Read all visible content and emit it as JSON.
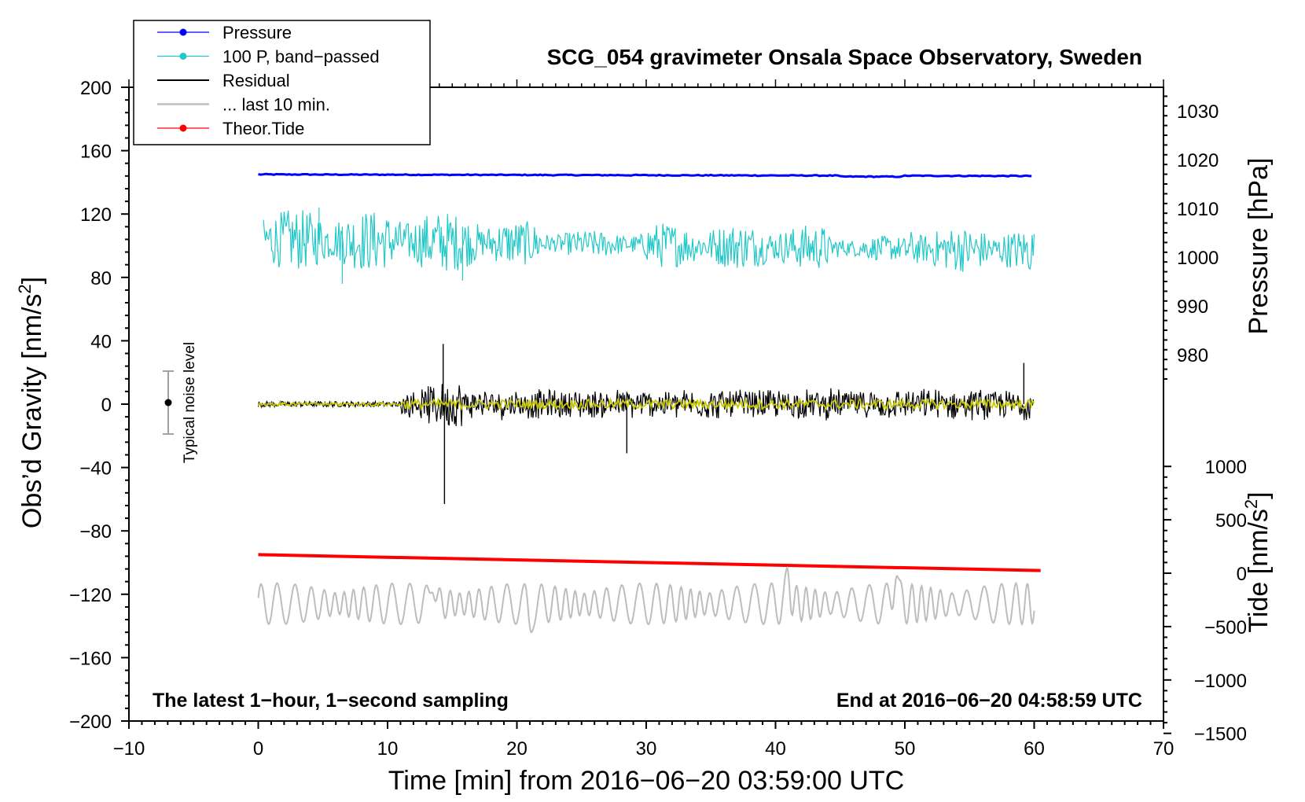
{
  "chart_data": {
    "type": "line",
    "title": "SCG_054 gravimeter Onsala Space Observatory, Sweden",
    "xlabel": "Time [min] from 2016−06−20 03:59:00 UTC",
    "ylabel": "Obs’d Gravity [nm/s",
    "ylabel_sup": "2",
    "ylabel_end": "]",
    "xlim": [
      -10,
      70
    ],
    "ylim": [
      -200,
      200
    ],
    "x_ticks": [
      {
        "value": -10,
        "label": "−10"
      },
      {
        "value": 0,
        "label": "0"
      },
      {
        "value": 10,
        "label": "10"
      },
      {
        "value": 20,
        "label": "20"
      },
      {
        "value": 30,
        "label": "30"
      },
      {
        "value": 40,
        "label": "40"
      },
      {
        "value": 50,
        "label": "50"
      },
      {
        "value": 60,
        "label": "60"
      },
      {
        "value": 70,
        "label": "70"
      }
    ],
    "y_ticks": [
      {
        "value": 200,
        "label": "200"
      },
      {
        "value": 160,
        "label": "160"
      },
      {
        "value": 120,
        "label": "120"
      },
      {
        "value": 80,
        "label": "80"
      },
      {
        "value": 40,
        "label": "40"
      },
      {
        "value": 0,
        "label": "0"
      },
      {
        "value": -40,
        "label": "−40"
      },
      {
        "value": -80,
        "label": "−80"
      },
      {
        "value": -120,
        "label": "−120"
      },
      {
        "value": -160,
        "label": "−160"
      },
      {
        "value": -200,
        "label": "−200"
      }
    ],
    "pressure_axis": {
      "label": "Pressure [hPa]",
      "ticks": [
        {
          "value": 1030,
          "label": "1030"
        },
        {
          "value": 1020,
          "label": "1020"
        },
        {
          "value": 1010,
          "label": "1010"
        },
        {
          "value": 1000,
          "label": "1000"
        },
        {
          "value": 990,
          "label": "990"
        },
        {
          "value": 980,
          "label": "980"
        }
      ]
    },
    "tide_axis": {
      "label": "Tide [nm/s",
      "label_sup": "2",
      "label_end": "]",
      "ticks": [
        {
          "value": 1000,
          "label": "1000"
        },
        {
          "value": 500,
          "label": "500"
        },
        {
          "value": 0,
          "label": "0"
        },
        {
          "value": -500,
          "label": "−500"
        },
        {
          "value": -1000,
          "label": "−1000"
        },
        {
          "value": -1500,
          "label": "−1500"
        }
      ]
    },
    "legend": [
      {
        "name": "Pressure",
        "color": "#0000ff",
        "marker": true
      },
      {
        "name": "100 P, band−passed",
        "color": "#22c8c8",
        "marker": true
      },
      {
        "name": "Residual",
        "color": "#000000",
        "marker": false
      },
      {
        "name": "... last 10 min.",
        "color": "#bdbdbd",
        "marker": false
      },
      {
        "name": "Theor.Tide",
        "color": "#ff0000",
        "marker": true
      }
    ],
    "series": [
      {
        "name": "Pressure",
        "color": "#0000ff",
        "x_range": [
          0,
          60
        ],
        "y_start": 145,
        "y_end": 144,
        "noise": 0.6
      },
      {
        "name": "100 P, band−passed",
        "color": "#22c8c8",
        "x_range": [
          0,
          60
        ],
        "y_start": 104,
        "y_end": 97,
        "amplitude": 12,
        "extremes": [
          [
            6.5,
            76
          ],
          [
            15.8,
            78
          ],
          [
            4.7,
            124
          ]
        ]
      },
      {
        "name": "Residual",
        "color": "#000000",
        "x_range": [
          0,
          60
        ],
        "y_center": 0,
        "amplitude": 8,
        "spikes": [
          [
            14.3,
            38
          ],
          [
            14.4,
            -63
          ],
          [
            28.5,
            -31
          ],
          [
            59.2,
            26
          ]
        ]
      },
      {
        "name": "Residual smoothed",
        "color": "#c8c800",
        "x_range": [
          0,
          60
        ],
        "y_center": 0,
        "amplitude": 3
      },
      {
        "name": "... last 10 min.",
        "color": "#bdbdbd",
        "x_range": [
          0,
          60
        ],
        "y_center": -126,
        "amplitude": 10,
        "extremes": [
          [
            49.3,
            -97
          ],
          [
            41,
            -105
          ],
          [
            13.5,
            -106
          ],
          [
            21,
            -140
          ]
        ]
      },
      {
        "name": "Theor.Tide",
        "color": "#ff0000",
        "x_range": [
          0,
          60.5
        ],
        "y_start": -95,
        "y_end": -105
      }
    ],
    "noise_indicator": {
      "label": "Typical noise level",
      "x": -7,
      "y": 0,
      "y_low": -20,
      "y_high": 20
    },
    "annotations": {
      "bottom_left": "The latest 1−hour, 1−second sampling",
      "bottom_right": "End at 2016−06−20 04:58:59 UTC"
    }
  }
}
